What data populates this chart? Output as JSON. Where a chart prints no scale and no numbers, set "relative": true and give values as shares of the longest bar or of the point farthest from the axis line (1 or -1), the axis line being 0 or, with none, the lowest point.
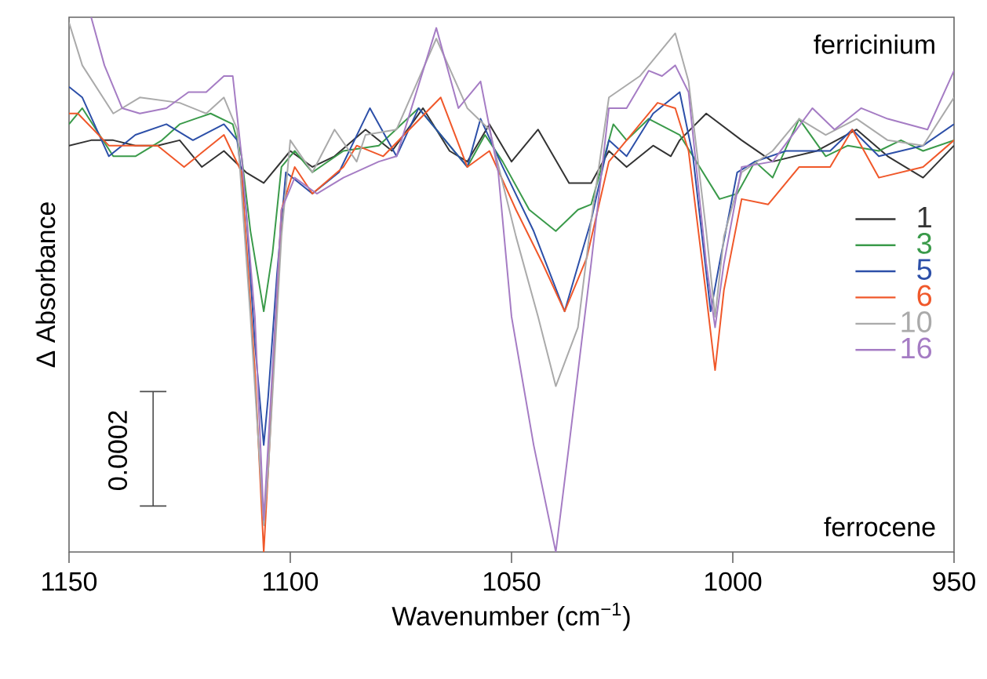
{
  "chart_data": {
    "type": "line",
    "relative": true,
    "xlabel": "Wavenumber (cm$^{−1}$)",
    "ylabel": "Δ Absorbance",
    "xlim": [
      1150,
      950
    ],
    "xticks": [
      1150,
      1100,
      1050,
      1000,
      950
    ],
    "tick_labels": "x",
    "legend": "right",
    "annotations": [
      "ferricinium",
      "ferrocene",
      "0.0002"
    ],
    "series": [
      {
        "name": "1",
        "color": "#333333",
        "x": [
          1150,
          1145,
          1140,
          1135,
          1130,
          1125,
          1120,
          1115,
          1110,
          1106,
          1100,
          1095,
          1090,
          1083,
          1077,
          1070,
          1064,
          1060,
          1055,
          1050,
          1044,
          1037,
          1032,
          1028,
          1024,
          1018,
          1014,
          1012,
          1006,
          998,
          991,
          981,
          972,
          965,
          957,
          950
        ],
        "values": [
          0.76,
          0.77,
          0.77,
          0.76,
          0.76,
          0.77,
          0.72,
          0.75,
          0.71,
          0.69,
          0.75,
          0.72,
          0.74,
          0.79,
          0.75,
          0.83,
          0.75,
          0.73,
          0.8,
          0.73,
          0.79,
          0.69,
          0.69,
          0.75,
          0.72,
          0.76,
          0.74,
          0.77,
          0.82,
          0.77,
          0.73,
          0.75,
          0.79,
          0.74,
          0.7,
          0.76
        ]
      },
      {
        "name": "3",
        "color": "#3a9a4a",
        "x": [
          1150,
          1147,
          1140,
          1135,
          1129,
          1125,
          1118,
          1113,
          1111,
          1109,
          1106,
          1104,
          1102,
          1099,
          1095,
          1088,
          1080,
          1071,
          1060,
          1056,
          1052,
          1046,
          1040,
          1035,
          1032,
          1027,
          1024,
          1019,
          1012,
          1009,
          1003,
          999,
          995,
          991,
          985,
          979,
          974,
          967,
          962,
          957,
          950
        ],
        "values": [
          0.8,
          0.83,
          0.74,
          0.74,
          0.77,
          0.8,
          0.82,
          0.8,
          0.74,
          0.6,
          0.45,
          0.56,
          0.72,
          0.75,
          0.71,
          0.75,
          0.76,
          0.83,
          0.72,
          0.78,
          0.73,
          0.64,
          0.6,
          0.64,
          0.65,
          0.8,
          0.77,
          0.81,
          0.78,
          0.74,
          0.66,
          0.67,
          0.73,
          0.7,
          0.81,
          0.74,
          0.76,
          0.75,
          0.77,
          0.75,
          0.77
        ]
      },
      {
        "name": "5",
        "color": "#2c4fa8",
        "x": [
          1150,
          1147,
          1141,
          1135,
          1128,
          1122,
          1115,
          1112,
          1110,
          1108,
          1106,
          1105,
          1103,
          1101,
          1095,
          1089,
          1082,
          1076,
          1071,
          1060,
          1057,
          1052,
          1045,
          1038,
          1032,
          1028,
          1024,
          1018,
          1012,
          1009,
          1005,
          1003,
          999,
          995,
          988,
          978,
          973,
          967,
          957,
          950
        ],
        "values": [
          0.87,
          0.85,
          0.74,
          0.78,
          0.8,
          0.77,
          0.8,
          0.77,
          0.64,
          0.39,
          0.2,
          0.29,
          0.52,
          0.71,
          0.67,
          0.71,
          0.83,
          0.74,
          0.83,
          0.72,
          0.81,
          0.72,
          0.6,
          0.45,
          0.62,
          0.77,
          0.74,
          0.82,
          0.86,
          0.74,
          0.45,
          0.54,
          0.71,
          0.73,
          0.75,
          0.75,
          0.79,
          0.74,
          0.76,
          0.8
        ]
      },
      {
        "name": "6",
        "color": "#f0582a",
        "x": [
          1150,
          1148,
          1141,
          1130,
          1124,
          1115,
          1111,
          1108,
          1106,
          1105,
          1102,
          1099,
          1095,
          1088,
          1085,
          1079,
          1066,
          1060,
          1055,
          1049,
          1043,
          1038,
          1033,
          1028,
          1023,
          1017,
          1013,
          1010,
          1006,
          1004,
          1002,
          998,
          992,
          985,
          978,
          973,
          967,
          957,
          950
        ],
        "values": [
          0.82,
          0.82,
          0.76,
          0.76,
          0.72,
          0.78,
          0.71,
          0.34,
          0.0,
          0.15,
          0.64,
          0.72,
          0.67,
          0.72,
          0.76,
          0.74,
          0.85,
          0.72,
          0.75,
          0.64,
          0.54,
          0.45,
          0.55,
          0.73,
          0.78,
          0.84,
          0.83,
          0.75,
          0.48,
          0.34,
          0.49,
          0.66,
          0.65,
          0.72,
          0.72,
          0.79,
          0.7,
          0.72,
          0.77
        ]
      },
      {
        "name": "10",
        "color": "#aaaaaa",
        "x": [
          1150,
          1147,
          1140,
          1134,
          1125,
          1119,
          1115,
          1112,
          1109,
          1106,
          1105,
          1102,
          1100,
          1095,
          1090,
          1085,
          1083,
          1076,
          1067,
          1060,
          1055,
          1049,
          1044,
          1040,
          1035,
          1032,
          1028,
          1021,
          1013,
          1010,
          1006,
          1004,
          1002,
          998,
          991,
          985,
          979,
          972,
          965,
          957,
          950
        ],
        "values": [
          0.99,
          0.91,
          0.82,
          0.85,
          0.84,
          0.82,
          0.85,
          0.79,
          0.44,
          0.05,
          0.15,
          0.59,
          0.77,
          0.71,
          0.79,
          0.73,
          0.78,
          0.79,
          0.96,
          0.83,
          0.79,
          0.59,
          0.44,
          0.31,
          0.42,
          0.62,
          0.85,
          0.89,
          0.97,
          0.88,
          0.6,
          0.44,
          0.59,
          0.71,
          0.75,
          0.81,
          0.78,
          0.81,
          0.77,
          0.76,
          0.85
        ]
      },
      {
        "name": "16",
        "color": "#a57cc4",
        "x": [
          1145,
          1142,
          1138,
          1134,
          1128,
          1123,
          1119,
          1115,
          1113,
          1111,
          1108,
          1106,
          1105,
          1102,
          1099,
          1094,
          1088,
          1080,
          1076,
          1067,
          1062,
          1057,
          1053,
          1050,
          1045,
          1040,
          1037,
          1032,
          1028,
          1024,
          1019,
          1016,
          1013,
          1010,
          1006,
          1004,
          1002,
          998,
          991,
          982,
          977,
          971,
          965,
          956,
          950
        ],
        "values": [
          1.0,
          0.91,
          0.83,
          0.82,
          0.83,
          0.86,
          0.86,
          0.89,
          0.89,
          0.74,
          0.44,
          0.06,
          0.2,
          0.64,
          0.7,
          0.67,
          0.7,
          0.73,
          0.74,
          0.98,
          0.83,
          0.88,
          0.71,
          0.44,
          0.2,
          0.0,
          0.2,
          0.54,
          0.83,
          0.83,
          0.9,
          0.89,
          0.91,
          0.86,
          0.54,
          0.42,
          0.54,
          0.72,
          0.73,
          0.83,
          0.79,
          0.83,
          0.81,
          0.79,
          0.9
        ]
      }
    ]
  }
}
